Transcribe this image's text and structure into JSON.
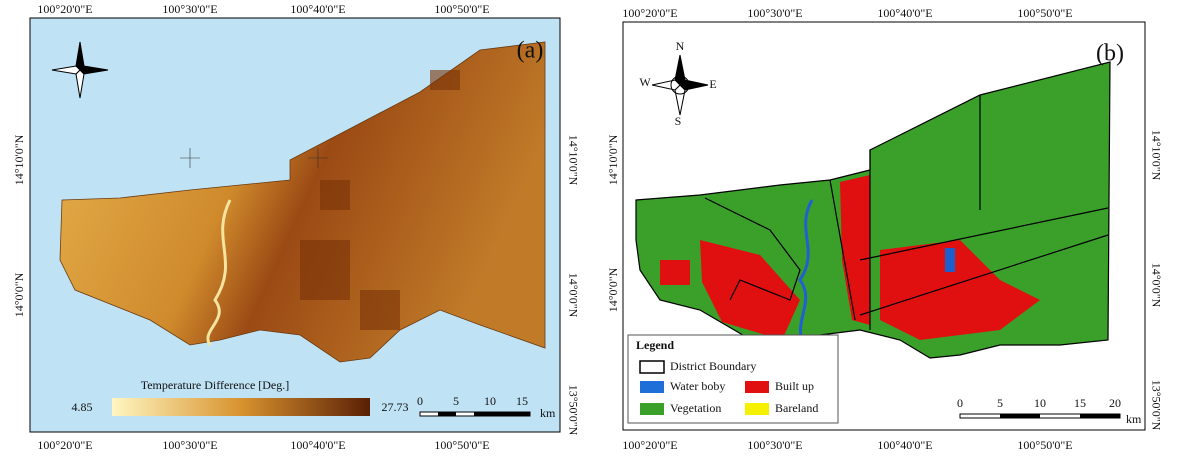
{
  "panels": [
    {
      "label": "(a)",
      "top_ticks": [
        "100°20'0\"E",
        "100°30'0\"E",
        "100°40'0\"E",
        "100°50'0\"E"
      ],
      "bottom_ticks": [
        "100°20'0\"E",
        "100°30'0\"E",
        "100°40'0\"E",
        "100°50'0\"E"
      ],
      "left_ticks": [
        "14°10'0\"N",
        "14°0'0\"N"
      ],
      "right_ticks": [
        "14°10'0\"N",
        "14°0'0\"N",
        "13°50'0\"N"
      ],
      "colorbar": {
        "title": "Temperature Difference [Deg.]",
        "min": "4.85",
        "max": "27.73"
      },
      "scalebar": [
        "0",
        "5",
        "10",
        "15",
        "km"
      ]
    },
    {
      "label": "(b)",
      "top_ticks": [
        "100°20'0\"E",
        "100°30'0\"E",
        "100°40'0\"E",
        "100°50'0\"E"
      ],
      "bottom_ticks": [
        "100°20'0\"E",
        "100°30'0\"E",
        "100°40'0\"E",
        "100°50'0\"E"
      ],
      "left_ticks": [
        "14°10'0\"N",
        "14°0'0\"N"
      ],
      "right_ticks": [
        "14°10'0\"N",
        "14°0'0\"N",
        "13°50'0\"N"
      ],
      "compass": [
        "N",
        "E",
        "S",
        "W"
      ],
      "legend": {
        "title": "Legend",
        "entries": [
          "District Boundary",
          "Water boby",
          "Built up",
          "Vegetation",
          "Bareland"
        ]
      },
      "scalebar": [
        "0",
        "5",
        "10",
        "15",
        "20",
        "km"
      ]
    }
  ]
}
